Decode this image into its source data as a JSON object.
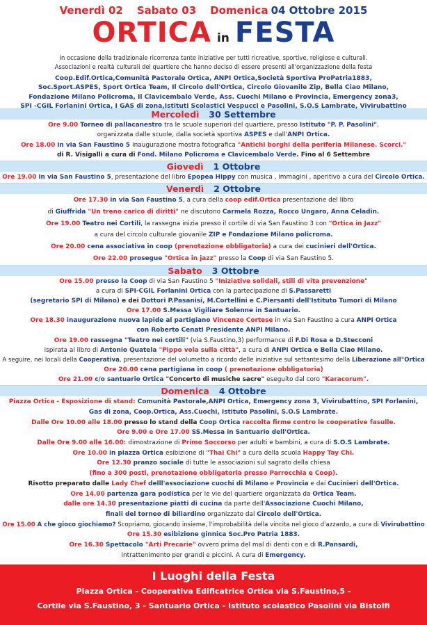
{
  "header": {
    "dates": [
      {
        "t": "Venerdì 02",
        "c": "r"
      },
      {
        "t": "Sabato 03",
        "c": "r"
      },
      {
        "t": "Domenica",
        "c": "r"
      },
      {
        "t": "04 Ottobre 2015",
        "c": "b"
      }
    ],
    "title_ortica": "ORTICA",
    "title_in": "in",
    "title_festa": "FESTA",
    "intro": [
      "In occasione della tradizionale ricorrenza tante iniziative per tutti ricreative, sportive, religiose e culturali.",
      "Associazioni e realtà culturali del quartiere che hanno deciso di essere presenti all'organizzazione della festa"
    ],
    "associations": [
      "Coop.Edif.Ortica,Comunità Pastorale Ortica, ANPI Ortica,Società Sportiva ProPatria1883,",
      "Soc.Sport.ASPES, Sport Ortica Team, Il Circolo dell'Ortica, Circolo Giovanile Zip, Bella Ciao Milano,",
      "Fondazione Milano Policroma, Il Clavicembalo Verde, Ass. Cuochi Milano e Provincia, Emergency zona3,",
      "SPI -CGIL Forlanini Ortica, I GAS di zona,Istituti Scolastici Vespucci e Pasolini, S.O.S Lambrate, Vivirubattino"
    ]
  },
  "colors": {
    "red": "#e5232b",
    "blue": "#1c3f8c",
    "daybar": "#cde6f7",
    "footer": "#ec1c24"
  },
  "days": [
    {
      "name": "Mercoledì",
      "date": "30 Settembre",
      "lines": [
        [
          {
            "t": "Ore 9.00 ",
            "c": "r"
          },
          {
            "t": "Torneo di pallacanestro ",
            "c": "b"
          },
          {
            "t": "tra le scuole superiori del quartiere, presso ",
            "c": "k"
          },
          {
            "t": "Istituto \"P. P.  Pasolini\"",
            "c": "b"
          },
          {
            "t": ",",
            "c": "k"
          }
        ],
        [
          {
            "t": "organizzata dalle scuole, dalla società sportiva ",
            "c": "k"
          },
          {
            "t": "ASPES",
            "c": "b"
          },
          {
            "t": " e dall'",
            "c": "k"
          },
          {
            "t": "ANPI Ortica.",
            "c": "b"
          }
        ],
        [
          {
            "t": "Ore 18.00 ",
            "c": "r"
          },
          {
            "t": "in via San Faustino 5 ",
            "c": "b"
          },
          {
            "t": "inaugurazione mostra fotografica ",
            "c": "k"
          },
          {
            "t": "\"Antichi borghi della periferia Milanese. Scorci.\"",
            "c": "r"
          }
        ],
        [
          {
            "t": "di R. Visigalli ",
            "c": "kb"
          },
          {
            "t": "a cura di ",
            "c": "kb"
          },
          {
            "t": "Fond. Milano Policroma e Clavicembalo Verde",
            "c": "b"
          },
          {
            "t": ". Fino al 6 Settembre",
            "c": "kb"
          }
        ]
      ]
    },
    {
      "name": "Giovedì",
      "date": "1 Ottobre",
      "lines": [
        [
          {
            "t": "Ore 19.00 ",
            "c": "r"
          },
          {
            "t": "in via San Faustino 5",
            "c": "b"
          },
          {
            "t": ", presentazione del libro ",
            "c": "k"
          },
          {
            "t": "Epopea Hippy",
            "c": "b"
          },
          {
            "t": " con musica , immagini , aperitivo a cura del ",
            "c": "k"
          },
          {
            "t": "Circolo Ortica.",
            "c": "b"
          }
        ]
      ]
    },
    {
      "name": "Venerdì",
      "date": "2 Ottobre",
      "lines": [
        [
          {
            "t": "Ore 17.30 ",
            "c": "r"
          },
          {
            "t": "in via San Faustino 5",
            "c": "b"
          },
          {
            "t": ", a cura della ",
            "c": "k"
          },
          {
            "t": "coop edif.Ortica",
            "c": "r"
          },
          {
            "t": " presentazione del libro",
            "c": "k"
          }
        ],
        [
          {
            "t": "di ",
            "c": "k"
          },
          {
            "t": "Giuffrida ",
            "c": "b"
          },
          {
            "t": "\"Un treno carico di diritti\"",
            "c": "r"
          },
          {
            "t": " ne discutono ",
            "c": "k"
          },
          {
            "t": "Carmela Rozza, Rocco Ungaro, Anna Celadin.",
            "c": "b"
          }
        ],
        [
          {
            "t": "Ore 19.00 ",
            "c": "r"
          },
          {
            "t": "Teatro nei Cortili",
            "c": "b"
          },
          {
            "t": ",  la rassegna inizia presso il cortile di  via San Faustino 3 con ",
            "c": "k"
          },
          {
            "t": "\"Ortica in Jazz\"",
            "c": "r"
          }
        ],
        [
          {
            "t": "a cura del circolo culturale giovanile ",
            "c": "k"
          },
          {
            "t": "ZIP e Fondazione Milano policroma.",
            "c": "b"
          }
        ],
        [
          {
            "t": "Ore 20.00 ",
            "c": "r"
          },
          {
            "t": "cena associativa in coop ",
            "c": "b"
          },
          {
            "t": "(prenotazione obbligatoria)",
            "c": "r"
          },
          {
            "t": " a cura dei ",
            "c": "k"
          },
          {
            "t": "cucinieri dell'Ortica.",
            "c": "b"
          }
        ],
        [
          {
            "t": "Ore 22.00 ",
            "c": "r"
          },
          {
            "t": "prosegue ",
            "c": "b"
          },
          {
            "t": "\"Ortica in jazz\"",
            "c": "r"
          },
          {
            "t": " presso la ",
            "c": "k"
          },
          {
            "t": "Coop",
            "c": "b"
          },
          {
            "t": " di via San Faustino 5.",
            "c": "k"
          }
        ]
      ]
    },
    {
      "name": "Sabato",
      "date": "3 Ottobre",
      "lines": [
        [
          {
            "t": "Ore 15.00 ",
            "c": "r"
          },
          {
            "t": "presso la ",
            "c": "b"
          },
          {
            "t": "Coop",
            "c": "b"
          },
          {
            "t": " di via San Faustino 5 ",
            "c": "k"
          },
          {
            "t": "\"Iniziative solidali, stili di vita prevenzione\"",
            "c": "r"
          }
        ],
        [
          {
            "t": "a cura di ",
            "c": "k"
          },
          {
            "t": "SPI-CGIL Forlanini Ortica",
            "c": "b"
          },
          {
            "t": " con la partecipazione di ",
            "c": "k"
          },
          {
            "t": "S.Passaretti",
            "c": "b"
          }
        ],
        [
          {
            "t": "(segretario SPI di Milano)",
            "c": "b"
          },
          {
            "t": " e dei ",
            "c": "kb"
          },
          {
            "t": "Dottori P.Pasanisi, M.Cortellini e C.Piersanti dell'Istituto Tumori di Milano",
            "c": "b"
          }
        ],
        [
          {
            "t": "Ore 17.00 ",
            "c": "r"
          },
          {
            "t": "S.Messa Vigiliare Solenne in Santuario.",
            "c": "b"
          }
        ],
        [
          {
            "t": "Ore 18.30 ",
            "c": "r"
          },
          {
            "t": "inaugurazione nuova lapide al partigiano ",
            "c": "b"
          },
          {
            "t": "Vincenzo Cortese",
            "c": "r"
          },
          {
            "t": " in via San Faustino a cura ",
            "c": "k"
          },
          {
            "t": "ANPI Ortica",
            "c": "b"
          }
        ],
        [
          {
            "t": "con Roberto Cenati Presidente ANPI Milano.",
            "c": "b"
          }
        ],
        [
          {
            "t": "Ore 19.00 ",
            "c": "r"
          },
          {
            "t": "rassegna \"Teatro nei cortili\"",
            "c": "b"
          },
          {
            "t": " (via S.Faustino,3) performance di ",
            "c": "k"
          },
          {
            "t": "F.Di Rosa e D.Stecconi",
            "c": "b"
          }
        ],
        [
          {
            "t": "ispirata al libro di ",
            "c": "k"
          },
          {
            "t": "Antonio Quatela ",
            "c": "b"
          },
          {
            "t": "\"Pippo vola sulla città\"",
            "c": "r"
          },
          {
            "t": ", a cura di ",
            "c": "k"
          },
          {
            "t": "ANPI Ortica e Bella Ciao Milano.",
            "c": "b"
          }
        ],
        [
          {
            "t": "A seguire, nei locali della ",
            "c": "k"
          },
          {
            "t": "Cooperativa",
            "c": "b"
          },
          {
            "t": ",  presentazione del volumetto a ricordo delle iniziative sul settantesimo della ",
            "c": "k"
          },
          {
            "t": "Liberazione all\"Ortica",
            "c": "b"
          }
        ],
        [
          {
            "t": "Ore 20.00 ",
            "c": "r"
          },
          {
            "t": "cena partigiana in coop ",
            "c": "b"
          },
          {
            "t": "( prenotazione obbligatoria)",
            "c": "r"
          }
        ],
        [
          {
            "t": "Ore 21.00 ",
            "c": "r"
          },
          {
            "t": "c/o santuario Ortica ",
            "c": "b"
          },
          {
            "t": "\"Concerto di musiche sacre\"",
            "c": "kb"
          },
          {
            "t": " eseguito dal coro ",
            "c": "k"
          },
          {
            "t": "\"Karacorum\".",
            "c": "r"
          }
        ]
      ]
    },
    {
      "name": "Domenica",
      "date": "4 Ottobre",
      "lines": [
        [
          {
            "t": "Piazza Ortica - Esposizione di stand: ",
            "c": "r"
          },
          {
            "t": "Comunità Pastorale,ANPI Ortica, Emergency zona 3, Vivirubattino, SPI Forlanini,",
            "c": "b"
          }
        ],
        [
          {
            "t": "Gas di zona, Coop.Ortica, Ass.Cuochi, Istituto Pasolini, S.O.S Lambrate.",
            "c": "b"
          }
        ],
        [
          {
            "t": "Dalle Ore 10.00 alle 18.00 ",
            "c": "r"
          },
          {
            "t": "presso lo stand della ",
            "c": "kb"
          },
          {
            "t": "Coop Ortica ",
            "c": "b"
          },
          {
            "t": "raccolta firme contro le cooperative fasulle.",
            "c": "r"
          }
        ],
        [
          {
            "t": "Ore 9.00 e Ore 17.00  ",
            "c": "r"
          },
          {
            "t": "SS.Messa in Santuario dell'Ortica.",
            "c": "b"
          }
        ],
        [
          {
            "t": "Dalle Ore 9.00 alle 16.00: ",
            "c": "r"
          },
          {
            "t": "dimostrazione di ",
            "c": "k"
          },
          {
            "t": "Primo Soccorso",
            "c": "r"
          },
          {
            "t": " per adulti e bambini, a cura di ",
            "c": "k"
          },
          {
            "t": "S.O.S Lambrate.",
            "c": "b"
          }
        ],
        [
          {
            "t": "Ore 10.00 ",
            "c": "r"
          },
          {
            "t": "in piazza Ortica ",
            "c": "b"
          },
          {
            "t": "esibizione di ",
            "c": "k"
          },
          {
            "t": "\"Thai Chi\"",
            "c": "r"
          },
          {
            "t": " a cura della scuola ",
            "c": "k"
          },
          {
            "t": "Happy Tay Chi.",
            "c": "r"
          }
        ],
        [
          {
            "t": "Ore 12.30 ",
            "c": "r"
          },
          {
            "t": "pranzo sociale",
            "c": "b"
          },
          {
            "t": " di tutte le associazioni sul sagrato della chiesa",
            "c": "k"
          }
        ],
        [
          {
            "t": "(fino a 300 posti, prenotazione obbligatoria presso Parrocchia e Coop).",
            "c": "r"
          }
        ],
        [
          {
            "t": "Risotto preparato dalle ",
            "c": "kb"
          },
          {
            "t": "Lady Chef",
            "c": "r"
          },
          {
            "t": " delll'associazione cuochi di Milano",
            "c": "b"
          },
          {
            "t": " e ",
            "c": "k"
          },
          {
            "t": "Provincia",
            "c": "b"
          },
          {
            "t": " e dai ",
            "c": "k"
          },
          {
            "t": "Cucinieri dell'Ortica.",
            "c": "b"
          }
        ],
        [
          {
            "t": "Ore 14.00 ",
            "c": "r"
          },
          {
            "t": "partenza gara podistica",
            "c": "b"
          },
          {
            "t": " per le vie del quartiere organizzata da ",
            "c": "k"
          },
          {
            "t": "Ortica Team.",
            "c": "b"
          }
        ],
        [
          {
            "t": "dalle ore 14.30 ",
            "c": "r"
          },
          {
            "t": "presentazione piatti di cucina",
            "c": "b"
          },
          {
            "t": " da parte dell'",
            "c": "k"
          },
          {
            "t": "Associazione Cuochi Milano,",
            "c": "b"
          }
        ],
        [
          {
            "t": "finali del torneo di biliardino",
            "c": "b"
          },
          {
            "t": " organizzato dal ",
            "c": "k"
          },
          {
            "t": "Circolo dell'Ortica.",
            "c": "b"
          }
        ],
        [
          {
            "t": "Ore 15.00 ",
            "c": "r"
          },
          {
            "t": "A che gioco giochiamo?",
            "c": "b"
          },
          {
            "t": " Scopriamo, giocando insieme, l'improbabilità della vincita nel gioco d'azzardo, a cura di ",
            "c": "k"
          },
          {
            "t": "Vivirubattino",
            "c": "b"
          }
        ],
        [
          {
            "t": "Ore 15.30 ",
            "c": "r"
          },
          {
            "t": "esibizione ginnica Soc.Pro Patria 1883.",
            "c": "b"
          }
        ],
        [
          {
            "t": "Ore 16.30 ",
            "c": "r"
          },
          {
            "t": "Spettacolo ",
            "c": "b"
          },
          {
            "t": "\"Arti Precarie\"",
            "c": "r"
          },
          {
            "t": " ovvero prima del mal di denti con e di ",
            "c": "k"
          },
          {
            "t": "R.Pansardi,",
            "c": "b"
          }
        ],
        [
          {
            "t": "intrattenimento per grandi e piccini.  A cura di ",
            "c": "k"
          },
          {
            "t": "Emergency.",
            "c": "b"
          }
        ]
      ]
    }
  ],
  "footer": {
    "title": "I Luoghi della Festa",
    "lines": [
      "Piazza Ortica - Cooperativa Edificatrice Ortica via S.Faustino,5 -",
      "Cortile via S.Faustino, 3 - Santuario Ortica - Istituto scolastico Pasolini via Bistolfi"
    ]
  }
}
